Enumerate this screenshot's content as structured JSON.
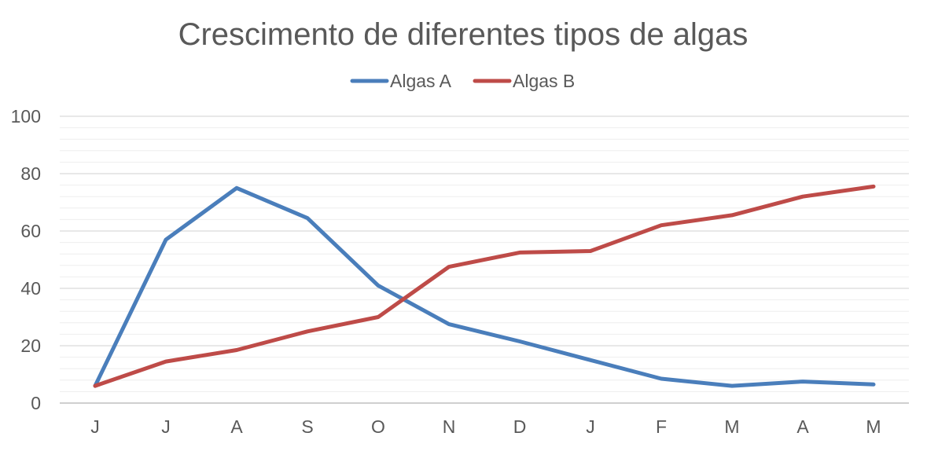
{
  "chart_data": {
    "type": "line",
    "title": "Crescimento de diferentes tipos de algas",
    "xlabel": "",
    "ylabel": "",
    "categories": [
      "J",
      "J",
      "A",
      "S",
      "O",
      "N",
      "D",
      "J",
      "F",
      "M",
      "A",
      "M"
    ],
    "ylim": [
      0,
      100
    ],
    "yticks": [
      0,
      20,
      40,
      60,
      80,
      100
    ],
    "major_grid_step": 20,
    "minor_grid_step": 4,
    "grid": true,
    "legend_position": "top-center",
    "series": [
      {
        "name": "Algas A",
        "color": "#4a7ebb",
        "values": [
          6,
          57,
          75,
          64.5,
          41,
          27.5,
          21.5,
          15,
          8.5,
          6,
          7.5,
          6.5
        ]
      },
      {
        "name": "Algas B",
        "color": "#be4b48",
        "values": [
          6,
          14.5,
          18.5,
          25,
          30,
          47.5,
          52.5,
          53,
          62,
          65.5,
          72,
          75.5
        ]
      }
    ],
    "colors": {
      "title": "#595959",
      "tick_label": "#595959",
      "major_grid": "#d9d9d9",
      "minor_grid": "#eeeeee",
      "axis": "#bfbfbf"
    }
  }
}
